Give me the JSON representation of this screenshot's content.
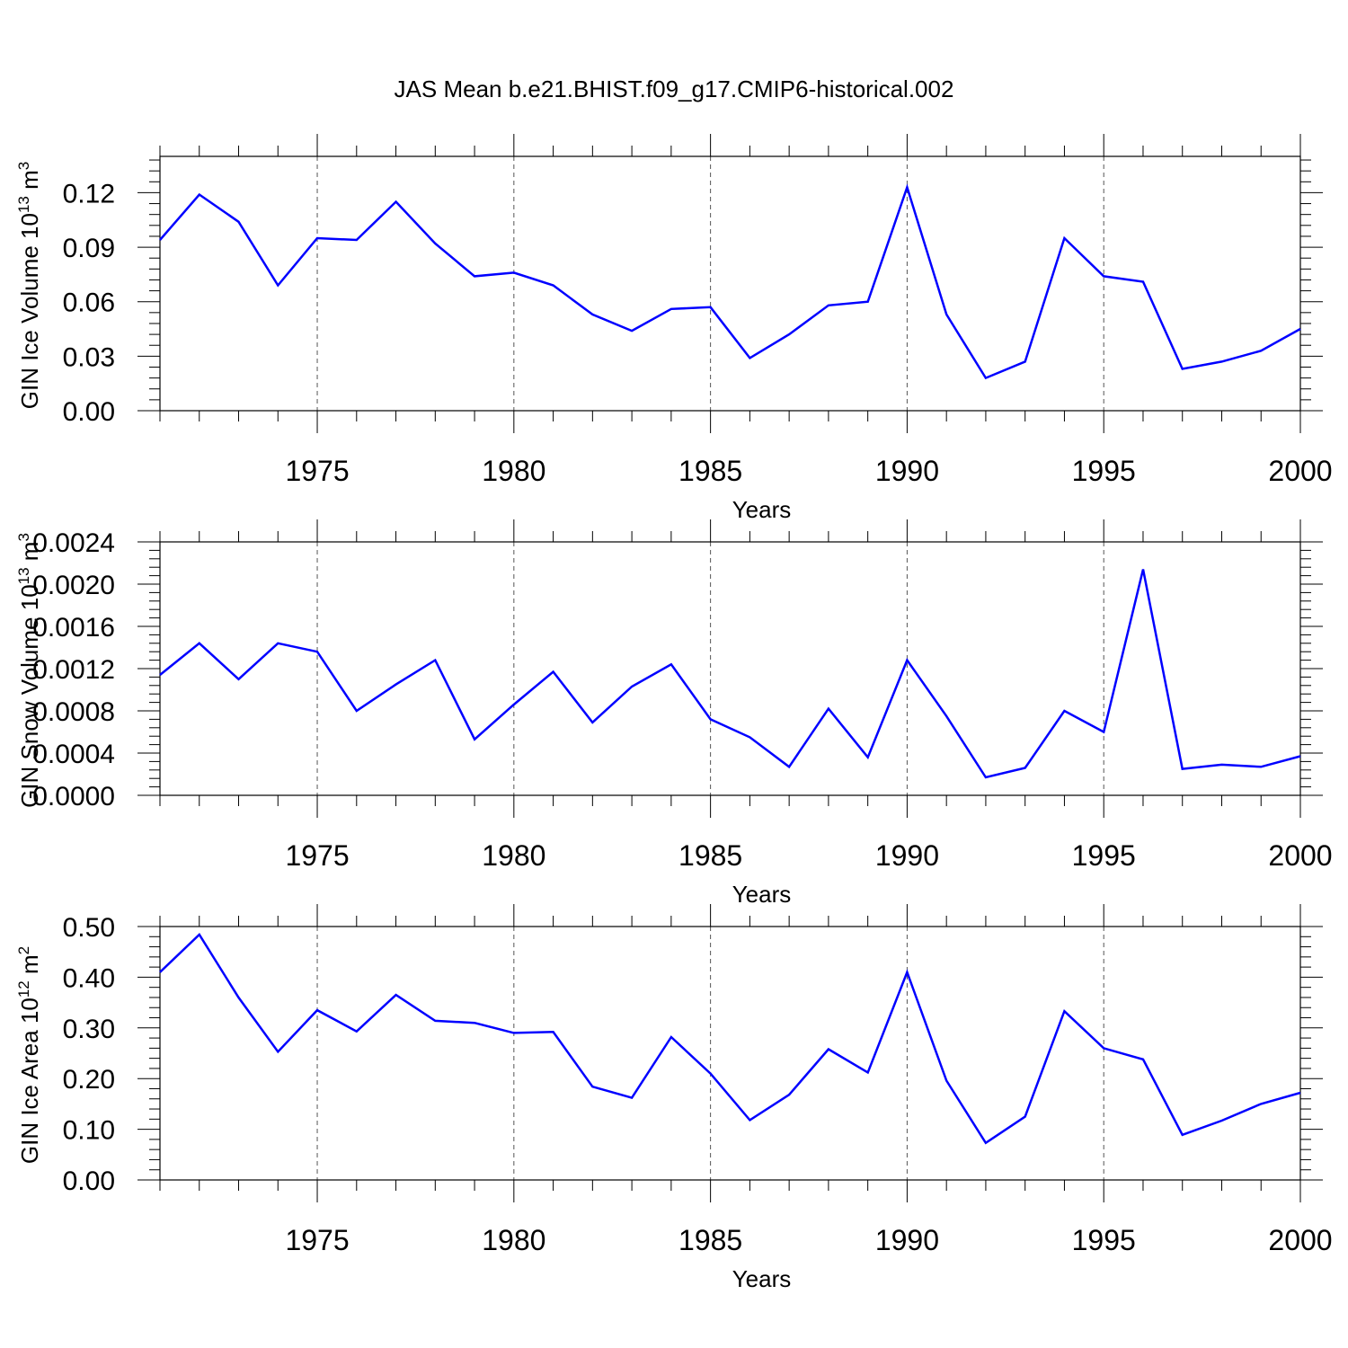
{
  "title": "JAS Mean b.e21.BHIST.f09_g17.CMIP6-historical.002",
  "colors": {
    "line": "#0000ff",
    "axis": "#000000",
    "grid": "#555555"
  },
  "chart_data": [
    {
      "type": "line",
      "ylabel": "GIN Ice Volume 10",
      "ylabel_exponent": "13",
      "ylabel_unit": " m",
      "ylabel_unit_exponent": "3",
      "xlabel": "Years",
      "xlim": [
        1971,
        2000
      ],
      "ylim": [
        0.0,
        0.14
      ],
      "yticks": [
        "0.00",
        "0.03",
        "0.06",
        "0.09",
        "0.12"
      ],
      "ytick_values": [
        0.0,
        0.03,
        0.06,
        0.09,
        0.12
      ],
      "xticks": [
        "1975",
        "1980",
        "1985",
        "1990",
        "1995",
        "2000"
      ],
      "xtick_values": [
        1975,
        1980,
        1985,
        1990,
        1995,
        2000
      ],
      "grid": "vertical dashed at labeled years",
      "x": [
        1971,
        1972,
        1973,
        1974,
        1975,
        1976,
        1977,
        1978,
        1979,
        1980,
        1981,
        1982,
        1983,
        1984,
        1985,
        1986,
        1987,
        1988,
        1989,
        1990,
        1991,
        1992,
        1993,
        1994,
        1995,
        1996,
        1997,
        1998,
        1999,
        2000
      ],
      "values": [
        0.094,
        0.119,
        0.104,
        0.069,
        0.095,
        0.094,
        0.115,
        0.092,
        0.074,
        0.076,
        0.069,
        0.053,
        0.044,
        0.056,
        0.057,
        0.029,
        0.042,
        0.058,
        0.06,
        0.123,
        0.053,
        0.018,
        0.027,
        0.095,
        0.074,
        0.071,
        0.023,
        0.027,
        0.033,
        0.045
      ]
    },
    {
      "type": "line",
      "ylabel": "GIN Snow Volume 10",
      "ylabel_exponent": "13",
      "ylabel_unit": " m",
      "ylabel_unit_exponent": "3",
      "xlabel": "Years",
      "xlim": [
        1971,
        2000
      ],
      "ylim": [
        0.0,
        0.0024
      ],
      "yticks": [
        "0.0000",
        "0.0004",
        "0.0008",
        "0.0012",
        "0.0016",
        "0.0020",
        "0.0024"
      ],
      "ytick_values": [
        0.0,
        0.0004,
        0.0008,
        0.0012,
        0.0016,
        0.002,
        0.0024
      ],
      "xticks": [
        "1975",
        "1980",
        "1985",
        "1990",
        "1995",
        "2000"
      ],
      "xtick_values": [
        1975,
        1980,
        1985,
        1990,
        1995,
        2000
      ],
      "grid": "vertical dashed at labeled years",
      "x": [
        1971,
        1972,
        1973,
        1974,
        1975,
        1976,
        1977,
        1978,
        1979,
        1980,
        1981,
        1982,
        1983,
        1984,
        1985,
        1986,
        1987,
        1988,
        1989,
        1990,
        1991,
        1992,
        1993,
        1994,
        1995,
        1996,
        1997,
        1998,
        1999,
        2000
      ],
      "values": [
        0.00114,
        0.00144,
        0.0011,
        0.00144,
        0.00136,
        0.0008,
        0.00105,
        0.00128,
        0.00053,
        0.00086,
        0.00117,
        0.00069,
        0.00103,
        0.00124,
        0.00072,
        0.00055,
        0.00027,
        0.00082,
        0.00036,
        0.00128,
        0.00075,
        0.00017,
        0.00026,
        0.0008,
        0.0006,
        0.00214,
        0.00025,
        0.00029,
        0.00027,
        0.00037
      ]
    },
    {
      "type": "line",
      "ylabel": "GIN Ice Area 10",
      "ylabel_exponent": "12",
      "ylabel_unit": " m",
      "ylabel_unit_exponent": "2",
      "xlabel": "Years",
      "xlim": [
        1971,
        2000
      ],
      "ylim": [
        0.0,
        0.5
      ],
      "yticks": [
        "0.00",
        "0.10",
        "0.20",
        "0.30",
        "0.40",
        "0.50"
      ],
      "ytick_values": [
        0.0,
        0.1,
        0.2,
        0.3,
        0.4,
        0.5
      ],
      "xticks": [
        "1975",
        "1980",
        "1985",
        "1990",
        "1995",
        "2000"
      ],
      "xtick_values": [
        1975,
        1980,
        1985,
        1990,
        1995,
        2000
      ],
      "grid": "vertical dashed at labeled years",
      "x": [
        1971,
        1972,
        1973,
        1974,
        1975,
        1976,
        1977,
        1978,
        1979,
        1980,
        1981,
        1982,
        1983,
        1984,
        1985,
        1986,
        1987,
        1988,
        1989,
        1990,
        1991,
        1992,
        1993,
        1994,
        1995,
        1996,
        1997,
        1998,
        1999,
        2000
      ],
      "values": [
        0.41,
        0.484,
        0.36,
        0.253,
        0.335,
        0.293,
        0.365,
        0.314,
        0.31,
        0.29,
        0.292,
        0.184,
        0.162,
        0.282,
        0.21,
        0.118,
        0.168,
        0.258,
        0.212,
        0.41,
        0.196,
        0.073,
        0.125,
        0.333,
        0.26,
        0.238,
        0.089,
        0.117,
        0.15,
        0.172
      ]
    }
  ]
}
